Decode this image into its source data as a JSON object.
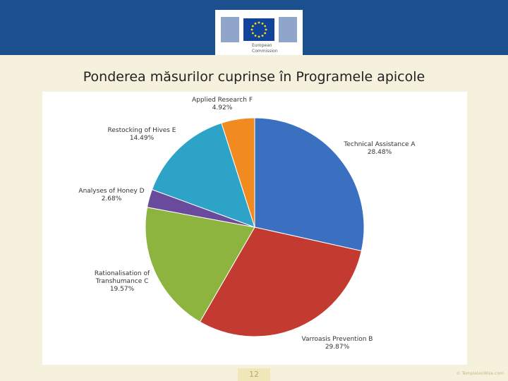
{
  "logo": {
    "lines": [
      "European",
      "Commission"
    ]
  },
  "chart_data": {
    "type": "pie",
    "title": "Ponderea măsurilor cuprinse în Programele apicole",
    "categories": [
      "Technical Assistance A",
      "Varroasis Prevention B",
      "Rationalisation of Transhumance C",
      "Analyses of Honey D",
      "Restocking of Hives E",
      "Applied Research F"
    ],
    "values": [
      28.48,
      29.87,
      19.57,
      2.68,
      14.49,
      4.92
    ],
    "value_labels": [
      "28.48%",
      "29.87%",
      "19.57%",
      "2.68%",
      "14.49%",
      "4.92%"
    ],
    "colors": [
      "#3b6fbf",
      "#c23a30",
      "#8db43e",
      "#6a4a9c",
      "#2ea3c8",
      "#f28a22"
    ]
  },
  "footer": {
    "page_number": "12",
    "credit": "© TemplatesWise.com"
  }
}
